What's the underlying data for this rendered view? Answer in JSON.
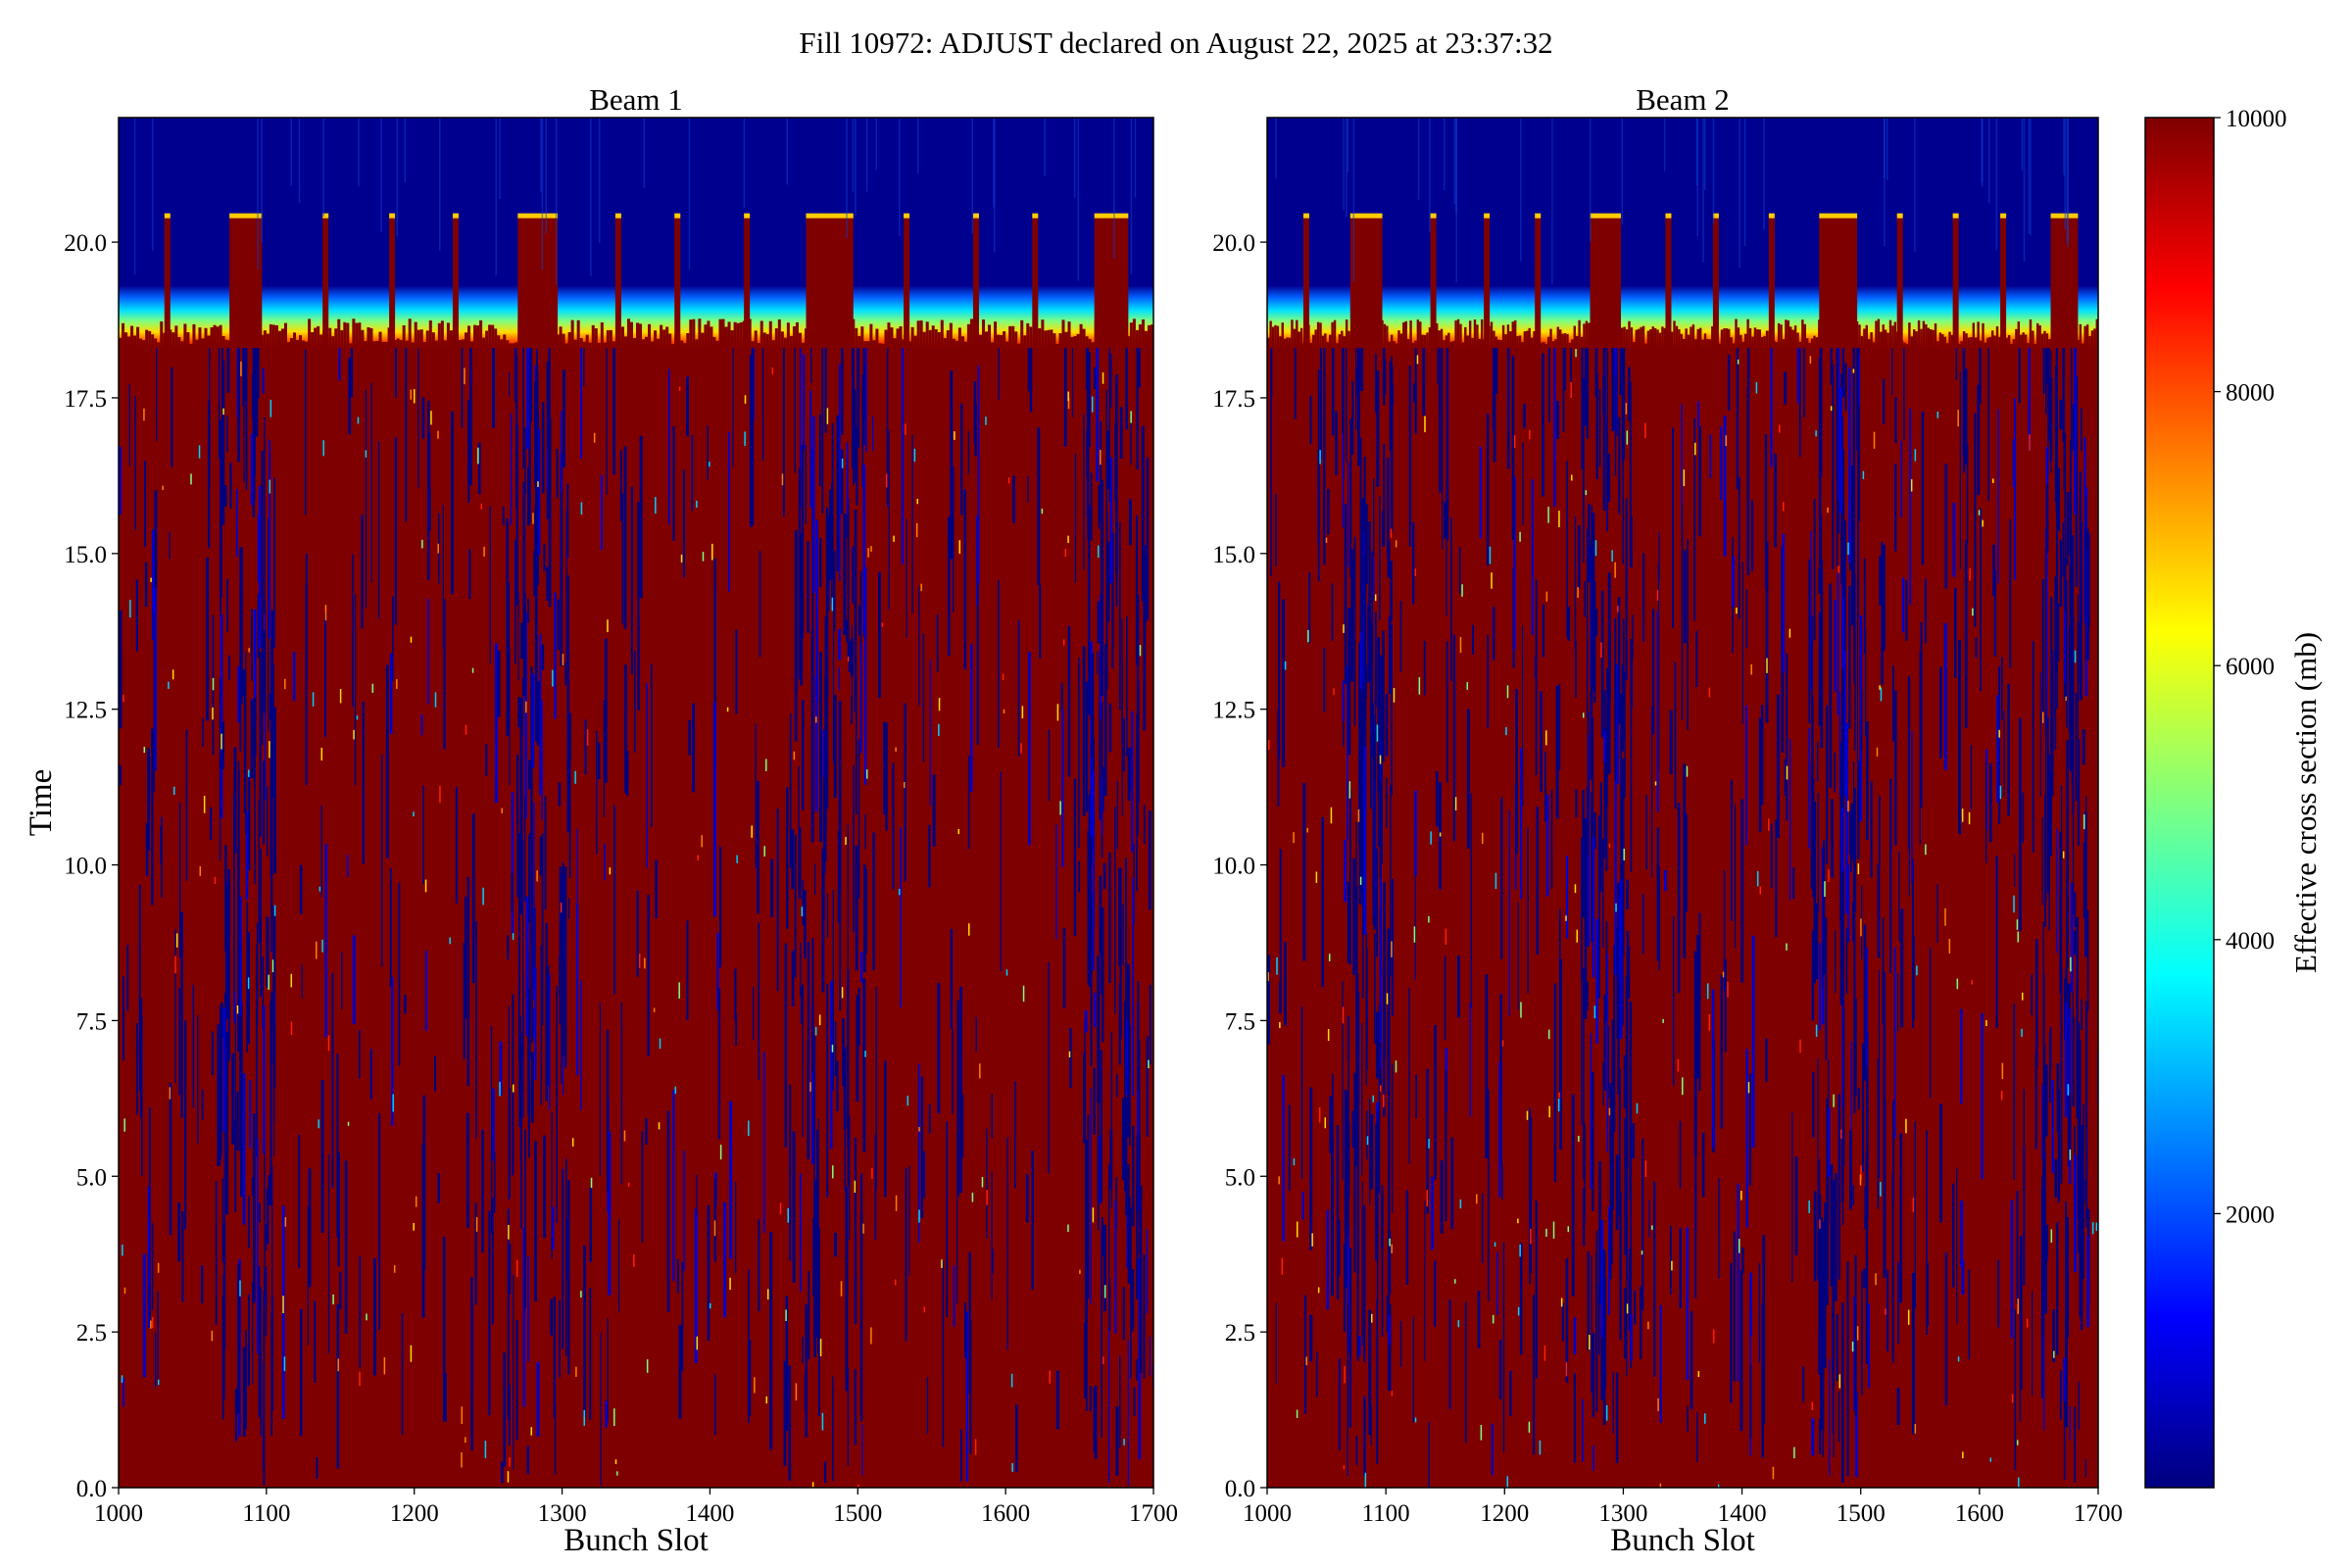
{
  "figure": {
    "suptitle": "Fill 10972: ADJUST declared on August 22, 2025 at 23:37:32"
  },
  "colors": {
    "background": "#ffffff",
    "tail_top": "#00008f",
    "colormap": [
      "#00007f",
      "#0000ff",
      "#007fff",
      "#00ffff",
      "#7fff7f",
      "#ffff00",
      "#ff7f00",
      "#ff0000",
      "#7f0000"
    ]
  },
  "chart_data": [
    {
      "type": "heatmap",
      "title": "Beam 1",
      "xlabel": "Bunch Slot",
      "ylabel": "Time",
      "xlim": [
        1000,
        1700
      ],
      "ylim": [
        0,
        22
      ],
      "xticks": [
        1000,
        1100,
        1200,
        1300,
        1400,
        1500,
        1600,
        1700
      ],
      "xtick_labels": [
        "1000",
        "1100",
        "1200",
        "1300",
        "1400",
        "1500",
        "1600",
        "1700"
      ],
      "yticks": [
        0,
        2.5,
        5,
        7.5,
        10,
        12.5,
        15,
        17.5,
        20
      ],
      "ytick_labels": [
        "0.0",
        "2.5",
        "5.0",
        "7.5",
        "10.0",
        "12.5",
        "15.0",
        "17.5",
        "20.0"
      ],
      "colormap": "jet",
      "vmin": 0,
      "vmax": 10000,
      "bulk_end_time": 18.3,
      "transition_end_time": 19.3,
      "train_starts": [
        1075,
        1270,
        1465,
        1660
      ],
      "train_ends": [
        1097,
        1297,
        1497,
        1683
      ],
      "end_time_at_train_positions": 20.4,
      "spike_slots": [
        1033,
        1140,
        1185,
        1228,
        1338,
        1378,
        1425,
        1533,
        1580,
        1620
      ]
    },
    {
      "type": "heatmap",
      "title": "Beam 2",
      "xlabel": "Bunch Slot",
      "ylabel": "",
      "xlim": [
        1000,
        1700
      ],
      "ylim": [
        0,
        22
      ],
      "xticks": [
        1000,
        1100,
        1200,
        1300,
        1400,
        1500,
        1600,
        1700
      ],
      "xtick_labels": [
        "1000",
        "1100",
        "1200",
        "1300",
        "1400",
        "1500",
        "1600",
        "1700"
      ],
      "yticks": [
        0,
        2.5,
        5,
        7.5,
        10,
        12.5,
        15,
        17.5,
        20
      ],
      "ytick_labels": [
        "0.0",
        "2.5",
        "5.0",
        "7.5",
        "10.0",
        "12.5",
        "15.0",
        "17.5",
        "20.0"
      ],
      "colormap": "jet",
      "vmin": 0,
      "vmax": 10000,
      "bulk_end_time": 18.3,
      "transition_end_time": 19.3,
      "train_starts": [
        1070,
        1272,
        1465,
        1660
      ],
      "train_ends": [
        1097,
        1298,
        1497,
        1683
      ],
      "end_time_at_train_positions": 20.4,
      "spike_slots": [
        1033,
        1140,
        1185,
        1228,
        1338,
        1378,
        1425,
        1533,
        1580,
        1620
      ]
    }
  ],
  "colorbar": {
    "label": "Effective cross section (mb)",
    "vmin": 0,
    "vmax": 10000,
    "ticks": [
      2000,
      4000,
      6000,
      8000,
      10000
    ],
    "tick_labels": [
      "2000",
      "4000",
      "6000",
      "8000",
      "10000"
    ]
  }
}
